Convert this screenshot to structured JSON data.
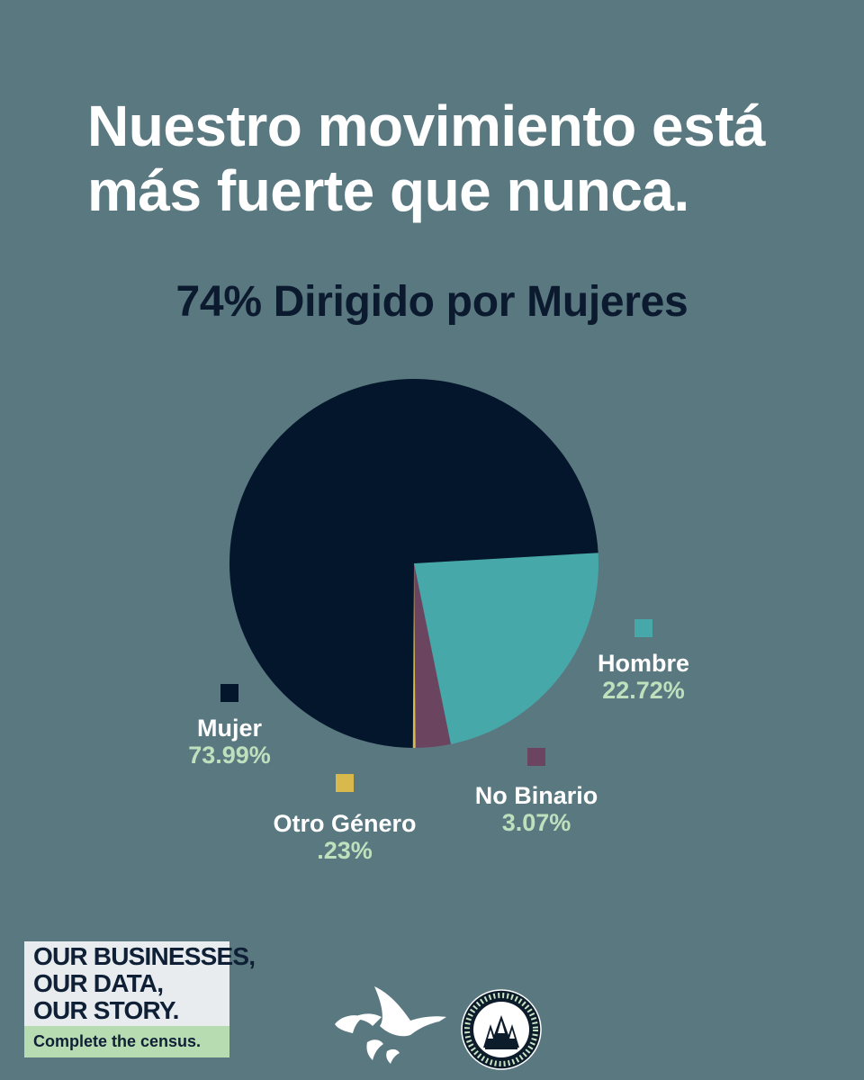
{
  "headline": {
    "line1": "Nuestro movimiento está",
    "line2": "más fuerte que nunca."
  },
  "chart_data": {
    "type": "pie",
    "title": "74% Dirigido por Mujeres",
    "slices": [
      {
        "label": "Hombre",
        "value": 22.72,
        "value_label": "22.72%",
        "color": "#46a8a8"
      },
      {
        "label": "No Binario",
        "value": 3.07,
        "value_label": "3.07%",
        "color": "#6b4560"
      },
      {
        "label": "Otro Género",
        "value": 0.23,
        "value_label": ".23%",
        "color": "#d9b84e"
      },
      {
        "label": "Mujer",
        "value": 73.99,
        "value_label": "73.99%",
        "color": "#04162b"
      }
    ]
  },
  "badge": {
    "line1": "OUR BUSINESSES,",
    "line2": "OUR DATA,",
    "line3": "OUR STORY.",
    "cta": "Complete the census."
  },
  "logos": {
    "geese_icon": "flying-geese-logo",
    "seal_icon": "usfwc-seal-logo",
    "seal_text": "UNITED STATES FEDERATION OF WORKER COOPERATIVES"
  },
  "colors": {
    "background": "#5a7880",
    "headline": "#ffffff",
    "subtitle": "#0b1a2e",
    "legend_value": "#bfe0bd"
  }
}
